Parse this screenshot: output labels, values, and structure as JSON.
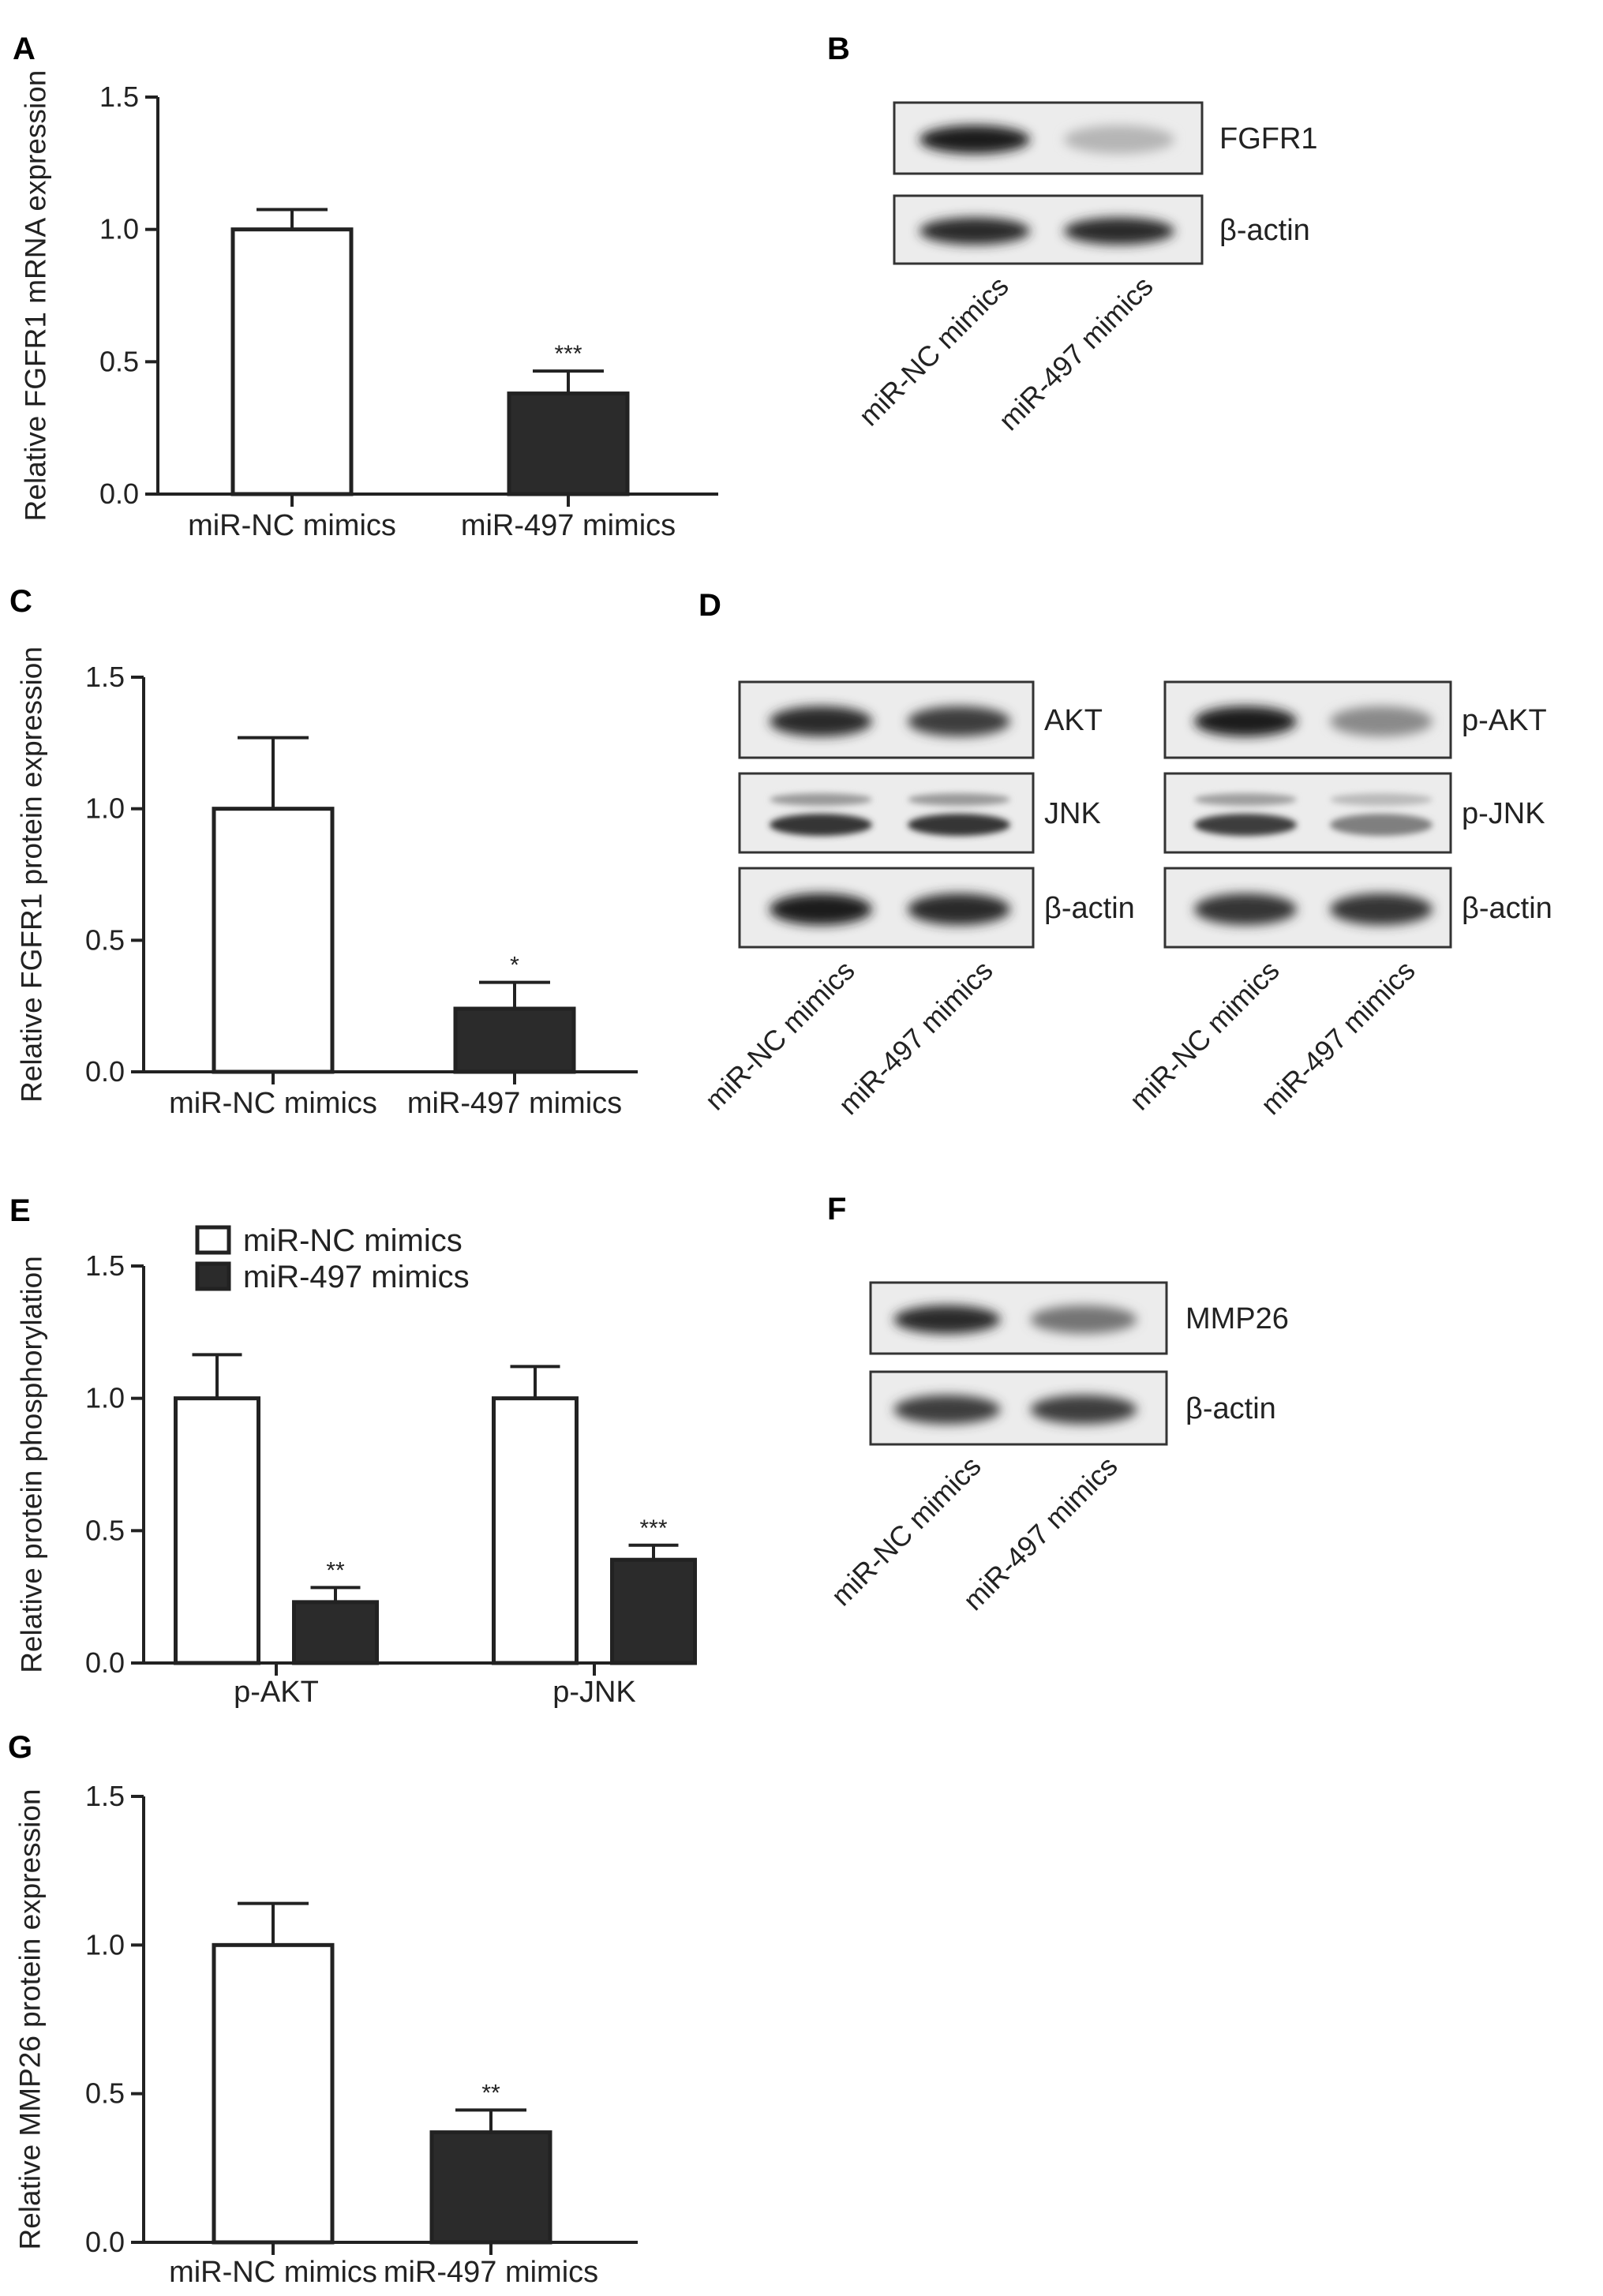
{
  "panels": {
    "A": "A",
    "B": "B",
    "C": "C",
    "D": "D",
    "E": "E",
    "F": "F",
    "G": "G"
  },
  "chart_data": [
    {
      "id": "A",
      "type": "bar",
      "ylabel": "Relative FGFR1 mRNA expression",
      "categories": [
        "miR-NC mimics",
        "miR-497 mimics"
      ],
      "values": [
        1.0,
        0.38
      ],
      "errors": [
        0.075,
        0.085
      ],
      "significance": [
        "",
        "***"
      ],
      "fills": [
        "#ffffff",
        "#2b2b2b"
      ],
      "ylim": [
        0,
        1.5
      ],
      "yticks": [
        "0.0",
        "0.5",
        "1.0",
        "1.5"
      ]
    },
    {
      "id": "C",
      "type": "bar",
      "ylabel": "Relative FGFR1 protein expression",
      "categories": [
        "miR-NC mimics",
        "miR-497 mimics"
      ],
      "values": [
        1.0,
        0.24
      ],
      "errors": [
        0.27,
        0.1
      ],
      "significance": [
        "",
        "*"
      ],
      "fills": [
        "#ffffff",
        "#2b2b2b"
      ],
      "ylim": [
        0,
        1.5
      ],
      "yticks": [
        "0.0",
        "0.5",
        "1.0",
        "1.5"
      ]
    },
    {
      "id": "E",
      "type": "bar",
      "ylabel": "Relative protein phosphorylation",
      "categories": [
        "p-AKT",
        "p-JNK"
      ],
      "series": [
        {
          "name": "miR-NC mimics",
          "values": [
            1.0,
            1.0
          ],
          "errors": [
            0.165,
            0.12
          ],
          "significance": [
            "",
            ""
          ],
          "fill": "#ffffff"
        },
        {
          "name": "miR-497 mimics",
          "values": [
            0.23,
            0.39
          ],
          "errors": [
            0.055,
            0.055
          ],
          "significance": [
            "**",
            "***"
          ],
          "fill": "#2b2b2b"
        }
      ],
      "legend": "top-left",
      "ylim": [
        0,
        1.5
      ],
      "yticks": [
        "0.0",
        "0.5",
        "1.0",
        "1.5"
      ]
    },
    {
      "id": "G",
      "type": "bar",
      "ylabel": "Relative MMP26 protein expression",
      "categories": [
        "miR-NC mimics",
        "miR-497 mimics"
      ],
      "values": [
        1.0,
        0.37
      ],
      "errors": [
        0.14,
        0.075
      ],
      "significance": [
        "",
        "**"
      ],
      "fills": [
        "#ffffff",
        "#2b2b2b"
      ],
      "ylim": [
        0,
        1.5
      ],
      "yticks": [
        "0.0",
        "0.5",
        "1.0",
        "1.5"
      ]
    }
  ],
  "blots": {
    "B": {
      "rows": [
        {
          "label": "FGFR1",
          "intensity": [
            1.0,
            0.3
          ]
        },
        {
          "label": "β-actin",
          "intensity": [
            0.95,
            0.95
          ]
        }
      ],
      "lanes": [
        "miR-NC mimics",
        "miR-497 mimics"
      ]
    },
    "D_left": {
      "rows": [
        {
          "label": "AKT",
          "intensity": [
            0.95,
            0.85
          ]
        },
        {
          "label": "JNK",
          "intensity": [
            0.9,
            0.9
          ]
        },
        {
          "label": "β-actin",
          "intensity": [
            1.0,
            0.95
          ]
        }
      ],
      "lanes": [
        "miR-NC mimics",
        "miR-497 mimics"
      ]
    },
    "D_right": {
      "rows": [
        {
          "label": "p-AKT",
          "intensity": [
            1.0,
            0.5
          ]
        },
        {
          "label": "p-JNK",
          "intensity": [
            0.85,
            0.55
          ]
        },
        {
          "label": "β-actin",
          "intensity": [
            0.9,
            0.9
          ]
        }
      ],
      "lanes": [
        "miR-NC mimics",
        "miR-497 mimics"
      ]
    },
    "F": {
      "rows": [
        {
          "label": "MMP26",
          "intensity": [
            0.95,
            0.6
          ]
        },
        {
          "label": "β-actin",
          "intensity": [
            0.85,
            0.85
          ]
        }
      ],
      "lanes": [
        "miR-NC mimics",
        "miR-497 mimics"
      ]
    }
  }
}
